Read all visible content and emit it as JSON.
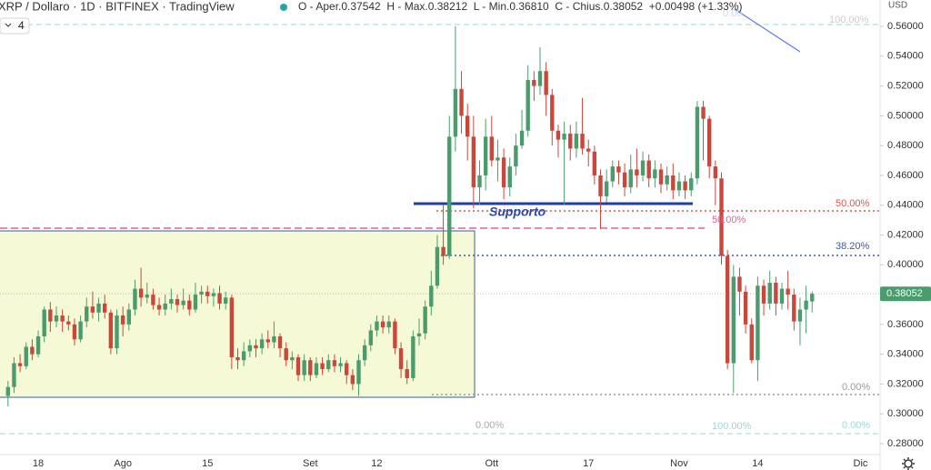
{
  "chart_data": {
    "type": "candlestick",
    "title": "XRP / Dollaro · 1D · BITFINEX · TradingView",
    "legend_text": "O - Aper.0.37542  H - Max.0.38212  L - Min.0.36810  C - Chius.0.38052  +0.00498 (+1.33%)",
    "currency": "USD",
    "interval_badge": "4",
    "last_price_label": "0.38052",
    "up_color": "#4a9c6d",
    "down_color": "#c9473b",
    "grid": false,
    "annotations": [
      "Supporto",
      "100.00%",
      "0.00",
      "50.00%",
      "50.00%",
      "38.20%",
      "0.00%",
      "0.00%",
      "100.00%",
      "0.00%"
    ],
    "ylim": [
      0.2727,
      0.5777
    ],
    "yticks": [
      {
        "value": 0.28,
        "label": "0.28000"
      },
      {
        "value": 0.3,
        "label": "0.30000"
      },
      {
        "value": 0.32,
        "label": "0.32000"
      },
      {
        "value": 0.34,
        "label": "0.34000"
      },
      {
        "value": 0.36,
        "label": "0.36000"
      },
      {
        "value": 0.38,
        "label": "0.38000"
      },
      {
        "value": 0.4,
        "label": "0.40000"
      },
      {
        "value": 0.42,
        "label": "0.42000"
      },
      {
        "value": 0.44,
        "label": "0.44000"
      },
      {
        "value": 0.46,
        "label": "0.46000"
      },
      {
        "value": 0.48,
        "label": "0.48000"
      },
      {
        "value": 0.5,
        "label": "0.50000"
      },
      {
        "value": 0.52,
        "label": "0.52000"
      },
      {
        "value": 0.54,
        "label": "0.54000"
      },
      {
        "value": 0.56,
        "label": "0.56000"
      }
    ],
    "categories": [
      null,
      null,
      null,
      null,
      null,
      "18",
      null,
      null,
      null,
      null,
      null,
      null,
      null,
      null,
      null,
      null,
      null,
      null,
      null,
      "Ago",
      null,
      null,
      null,
      null,
      null,
      null,
      null,
      null,
      null,
      null,
      null,
      null,
      null,
      "15",
      null,
      null,
      null,
      null,
      null,
      null,
      null,
      null,
      null,
      null,
      null,
      null,
      null,
      null,
      null,
      null,
      "Set",
      null,
      null,
      null,
      null,
      null,
      null,
      null,
      null,
      null,
      null,
      "12",
      null,
      null,
      null,
      null,
      null,
      null,
      null,
      null,
      null,
      null,
      null,
      null,
      null,
      null,
      null,
      null,
      null,
      null,
      "Ott",
      null,
      null,
      null,
      null,
      null,
      null,
      null,
      null,
      null,
      null,
      null,
      null,
      null,
      null,
      null,
      "17",
      null,
      null,
      null,
      null,
      null,
      null,
      null,
      null,
      null,
      null,
      null,
      null,
      null,
      null,
      "Nov",
      null,
      null,
      null,
      null,
      null,
      null,
      null,
      null,
      null,
      null,
      null,
      null,
      "14",
      null,
      null,
      null,
      null,
      null,
      null,
      null,
      null,
      null,
      null,
      null,
      null,
      null,
      null,
      null,
      null,
      "Dic"
    ],
    "open": [
      0.312,
      0.318,
      0.334,
      0.332,
      0.345,
      0.34,
      0.352,
      0.37,
      0.362,
      0.366,
      0.362,
      0.36,
      0.35,
      0.362,
      0.372,
      0.368,
      0.374,
      0.368,
      0.344,
      0.366,
      0.36,
      0.37,
      0.384,
      0.378,
      0.38,
      0.373,
      0.37,
      0.374,
      0.377,
      0.373,
      0.376,
      0.37,
      0.38,
      0.382,
      0.379,
      0.381,
      0.374,
      0.378,
      0.338,
      0.336,
      0.342,
      0.346,
      0.344,
      0.35,
      0.348,
      0.352,
      0.344,
      0.336,
      0.338,
      0.326,
      0.336,
      0.326,
      0.334,
      0.33,
      0.336,
      0.332,
      0.334,
      0.326,
      0.32,
      0.336,
      0.346,
      0.356,
      0.362,
      0.358,
      0.362,
      0.344,
      0.33,
      0.324,
      0.352,
      0.354,
      0.372,
      0.386,
      0.412,
      0.406,
      0.486,
      0.518,
      0.5,
      0.486,
      0.452,
      0.46,
      0.486,
      0.47,
      0.472,
      0.452,
      0.466,
      0.48,
      0.49,
      0.524,
      0.52,
      0.53,
      0.514,
      0.49,
      0.484,
      0.488,
      0.478,
      0.488,
      0.478,
      0.476,
      0.46,
      0.446,
      0.456,
      0.466,
      0.462,
      0.452,
      0.464,
      0.46,
      0.47,
      0.458,
      0.464,
      0.454,
      0.46,
      0.45,
      0.456,
      0.45,
      0.458,
      0.506,
      0.498,
      0.466,
      0.458,
      0.406,
      0.334,
      0.392,
      0.382,
      0.36,
      0.336,
      0.386,
      0.374,
      0.388,
      0.374,
      0.384,
      0.38,
      0.362,
      0.37,
      0.37542,
      null,
      null,
      null,
      null,
      null,
      null,
      null,
      null
    ],
    "high": [
      0.322,
      0.338,
      0.34,
      0.348,
      0.35,
      0.356,
      0.372,
      0.375,
      0.372,
      0.37,
      0.366,
      0.364,
      0.366,
      0.378,
      0.382,
      0.378,
      0.38,
      0.37,
      0.37,
      0.372,
      0.374,
      0.39,
      0.398,
      0.388,
      0.384,
      0.378,
      0.38,
      0.384,
      0.38,
      0.384,
      0.38,
      0.388,
      0.386,
      0.386,
      0.384,
      0.386,
      0.382,
      0.38,
      0.344,
      0.348,
      0.35,
      0.35,
      0.354,
      0.356,
      0.362,
      0.354,
      0.348,
      0.342,
      0.34,
      0.34,
      0.338,
      0.338,
      0.338,
      0.34,
      0.34,
      0.338,
      0.336,
      0.33,
      0.34,
      0.35,
      0.36,
      0.366,
      0.366,
      0.366,
      0.364,
      0.348,
      0.336,
      0.356,
      0.364,
      0.376,
      0.396,
      0.42,
      0.44,
      0.5,
      0.56,
      0.53,
      0.508,
      0.5,
      0.47,
      0.498,
      0.5,
      0.484,
      0.478,
      0.472,
      0.488,
      0.504,
      0.534,
      0.53,
      0.546,
      0.536,
      0.518,
      0.494,
      0.496,
      0.494,
      0.496,
      0.512,
      0.484,
      0.48,
      0.464,
      0.464,
      0.47,
      0.47,
      0.468,
      0.474,
      0.478,
      0.476,
      0.474,
      0.47,
      0.468,
      0.466,
      0.468,
      0.462,
      0.46,
      0.462,
      0.51,
      0.51,
      0.5,
      0.47,
      0.462,
      0.41,
      0.4,
      0.398,
      0.386,
      0.364,
      0.392,
      0.39,
      0.396,
      0.392,
      0.388,
      0.396,
      0.384,
      0.378,
      0.386,
      0.38212,
      null,
      null,
      null,
      null,
      null,
      null,
      null,
      null
    ],
    "low": [
      0.305,
      0.314,
      0.328,
      0.33,
      0.336,
      0.338,
      0.348,
      0.355,
      0.358,
      0.355,
      0.356,
      0.346,
      0.348,
      0.358,
      0.364,
      0.362,
      0.364,
      0.34,
      0.34,
      0.352,
      0.356,
      0.366,
      0.372,
      0.374,
      0.37,
      0.366,
      0.366,
      0.37,
      0.368,
      0.37,
      0.366,
      0.368,
      0.374,
      0.374,
      0.372,
      0.37,
      0.37,
      0.33,
      0.33,
      0.332,
      0.338,
      0.338,
      0.34,
      0.344,
      0.344,
      0.338,
      0.332,
      0.33,
      0.322,
      0.322,
      0.322,
      0.324,
      0.326,
      0.328,
      0.328,
      0.328,
      0.32,
      0.316,
      0.312,
      0.332,
      0.342,
      0.352,
      0.354,
      0.354,
      0.34,
      0.324,
      0.32,
      0.322,
      0.346,
      0.35,
      0.366,
      0.384,
      0.4,
      0.404,
      0.476,
      0.488,
      0.47,
      0.438,
      0.44,
      0.45,
      0.466,
      0.456,
      0.444,
      0.446,
      0.46,
      0.478,
      0.486,
      0.51,
      0.514,
      0.5,
      0.48,
      0.472,
      0.44,
      0.47,
      0.472,
      0.474,
      0.466,
      0.454,
      0.424,
      0.442,
      0.452,
      0.454,
      0.446,
      0.448,
      0.452,
      0.456,
      0.452,
      0.452,
      0.448,
      0.45,
      0.444,
      0.446,
      0.444,
      0.446,
      0.454,
      0.47,
      0.458,
      0.44,
      0.4,
      0.33,
      0.314,
      0.366,
      0.354,
      0.334,
      0.322,
      0.366,
      0.37,
      0.366,
      0.37,
      0.37,
      0.356,
      0.346,
      0.354,
      0.3681,
      null,
      null,
      null,
      null,
      null,
      null,
      null,
      null
    ],
    "close": [
      0.318,
      0.334,
      0.332,
      0.345,
      0.34,
      0.352,
      0.37,
      0.362,
      0.366,
      0.362,
      0.36,
      0.35,
      0.362,
      0.372,
      0.368,
      0.374,
      0.368,
      0.344,
      0.366,
      0.36,
      0.37,
      0.384,
      0.378,
      0.38,
      0.373,
      0.37,
      0.374,
      0.377,
      0.373,
      0.376,
      0.37,
      0.38,
      0.382,
      0.379,
      0.381,
      0.374,
      0.378,
      0.338,
      0.336,
      0.342,
      0.346,
      0.344,
      0.35,
      0.348,
      0.352,
      0.344,
      0.336,
      0.338,
      0.326,
      0.336,
      0.326,
      0.334,
      0.33,
      0.336,
      0.332,
      0.334,
      0.326,
      0.32,
      0.336,
      0.346,
      0.356,
      0.362,
      0.358,
      0.362,
      0.344,
      0.33,
      0.324,
      0.352,
      0.354,
      0.372,
      0.386,
      0.412,
      0.406,
      0.486,
      0.518,
      0.5,
      0.486,
      0.452,
      0.46,
      0.486,
      0.47,
      0.472,
      0.452,
      0.466,
      0.48,
      0.49,
      0.524,
      0.52,
      0.53,
      0.514,
      0.49,
      0.484,
      0.488,
      0.478,
      0.488,
      0.478,
      0.476,
      0.46,
      0.446,
      0.456,
      0.466,
      0.462,
      0.452,
      0.464,
      0.46,
      0.47,
      0.458,
      0.464,
      0.454,
      0.46,
      0.45,
      0.456,
      0.45,
      0.458,
      0.506,
      0.498,
      0.466,
      0.458,
      0.406,
      0.334,
      0.392,
      0.382,
      0.36,
      0.336,
      0.386,
      0.374,
      0.388,
      0.374,
      0.384,
      0.38,
      0.362,
      0.37,
      0.376,
      0.38052,
      null,
      null,
      null,
      null,
      null,
      null,
      null,
      null
    ]
  }
}
